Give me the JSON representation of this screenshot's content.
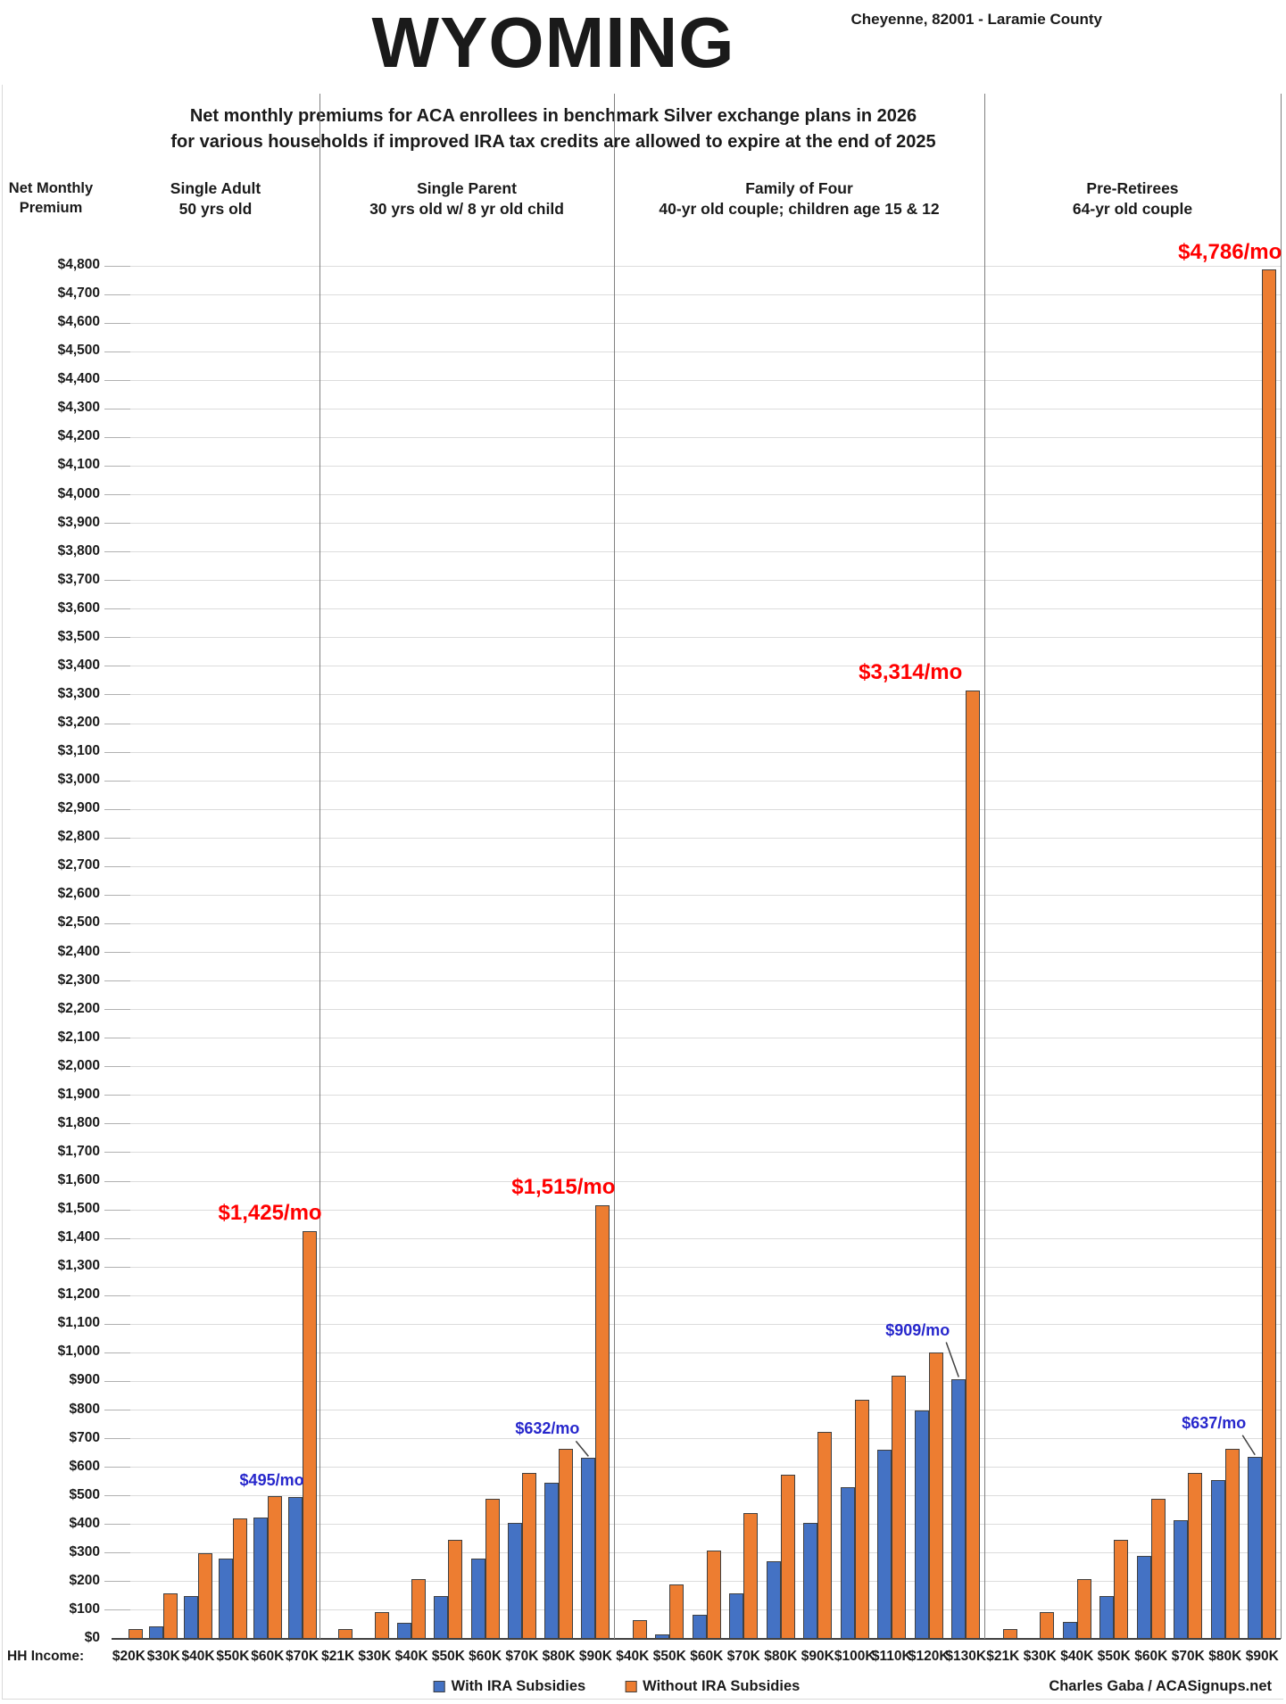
{
  "title": "WYOMING",
  "location": "Cheyenne, 82001 - Laramie County",
  "subtitle": {
    "line1": "Net monthly premiums for ACA enrollees in benchmark Silver exchange plans in 2026",
    "line2": "for various households if improved IRA tax credits are allowed to expire at the end of 2025"
  },
  "y_axis": {
    "title_line1": "Net Monthly",
    "title_line2": "Premium",
    "min": 0,
    "max": 4800,
    "step": 100,
    "ticks": [
      "$0",
      "$100",
      "$200",
      "$300",
      "$400",
      "$500",
      "$600",
      "$700",
      "$800",
      "$900",
      "$1,000",
      "$1,100",
      "$1,200",
      "$1,300",
      "$1,400",
      "$1,500",
      "$1,600",
      "$1,700",
      "$1,800",
      "$1,900",
      "$2,000",
      "$2,100",
      "$2,200",
      "$2,300",
      "$2,400",
      "$2,500",
      "$2,600",
      "$2,700",
      "$2,800",
      "$2,900",
      "$3,000",
      "$3,100",
      "$3,200",
      "$3,300",
      "$3,400",
      "$3,500",
      "$3,600",
      "$3,700",
      "$3,800",
      "$3,900",
      "$4,000",
      "$4,100",
      "$4,200",
      "$4,300",
      "$4,400",
      "$4,500",
      "$4,600",
      "$4,700",
      "$4,800"
    ]
  },
  "x_axis": {
    "title": "HH Income:"
  },
  "legend": {
    "items": [
      {
        "label": "With IRA Subsidies",
        "color": "#4472C4"
      },
      {
        "label": "Without IRA Subsidies",
        "color": "#ED7D31"
      }
    ]
  },
  "attribution": "Charles Gaba / ACASignups.net",
  "colors": {
    "with_bar": "#4472C4",
    "without_bar": "#ED7D31",
    "bar_border": "#404040",
    "gridline": "#DCDCDC",
    "divider": "#808080",
    "callout_with_text": "#2727CC",
    "callout_without_text": "#FF0000"
  },
  "chart_data": {
    "type": "bar",
    "unit": "USD per month",
    "ylim": [
      0,
      4800
    ],
    "grid": true,
    "legend_position": "bottom",
    "series_names": [
      "With IRA Subsidies",
      "Without IRA Subsidies"
    ],
    "groups": [
      {
        "name": "Single Adult",
        "description": "50 yrs old",
        "incomes": [
          "$20K",
          "$30K",
          "$40K",
          "$50K",
          "$60K",
          "$70K"
        ],
        "with_ira": [
          0,
          45,
          150,
          280,
          425,
          495
        ],
        "without_ira": [
          35,
          160,
          300,
          420,
          500,
          1425
        ],
        "callout_with": {
          "text": "$495/mo",
          "income": "$70K",
          "leader": false
        },
        "callout_without": {
          "text": "$1,425/mo",
          "income": "$70K",
          "align": "right"
        }
      },
      {
        "name": "Single Parent",
        "description": "30 yrs old w/ 8 yr old child",
        "incomes": [
          "$21K",
          "$30K",
          "$40K",
          "$50K",
          "$60K",
          "$70K",
          "$80K",
          "$90K"
        ],
        "with_ira": [
          0,
          0,
          55,
          150,
          280,
          405,
          545,
          632
        ],
        "without_ira": [
          35,
          95,
          210,
          345,
          490,
          580,
          665,
          1515
        ],
        "callout_with": {
          "text": "$632/mo",
          "income": "$90K",
          "leader": true
        },
        "callout_without": {
          "text": "$1,515/mo",
          "income": "$90K",
          "align": "right"
        }
      },
      {
        "name": "Family of Four",
        "description": "40-yr old couple; children age 15 & 12",
        "incomes": [
          "$40K",
          "$50K",
          "$60K",
          "$70K",
          "$80K",
          "$90K",
          "$100K",
          "$110K",
          "$120K",
          "$130K"
        ],
        "with_ira": [
          0,
          15,
          85,
          160,
          270,
          405,
          530,
          660,
          800,
          909
        ],
        "without_ira": [
          65,
          190,
          310,
          440,
          575,
          725,
          835,
          920,
          1000,
          3314
        ],
        "callout_with": {
          "text": "$909/mo",
          "income": "$130K",
          "leader": true
        },
        "callout_without": {
          "text": "$3,314/mo",
          "income": "$130K",
          "align": "left"
        }
      },
      {
        "name": "Pre-Retirees",
        "description": "64-yr old couple",
        "incomes": [
          "$21K",
          "$30K",
          "$40K",
          "$50K",
          "$60K",
          "$70K",
          "$80K",
          "$90K"
        ],
        "with_ira": [
          0,
          0,
          60,
          150,
          290,
          415,
          555,
          637
        ],
        "without_ira": [
          35,
          95,
          210,
          345,
          490,
          580,
          665,
          4786
        ],
        "callout_with": {
          "text": "$637/mo",
          "income": "$90K",
          "leader": true
        },
        "callout_without": {
          "text": "$4,786/mo",
          "income": "$90K",
          "align": "right"
        }
      }
    ]
  }
}
